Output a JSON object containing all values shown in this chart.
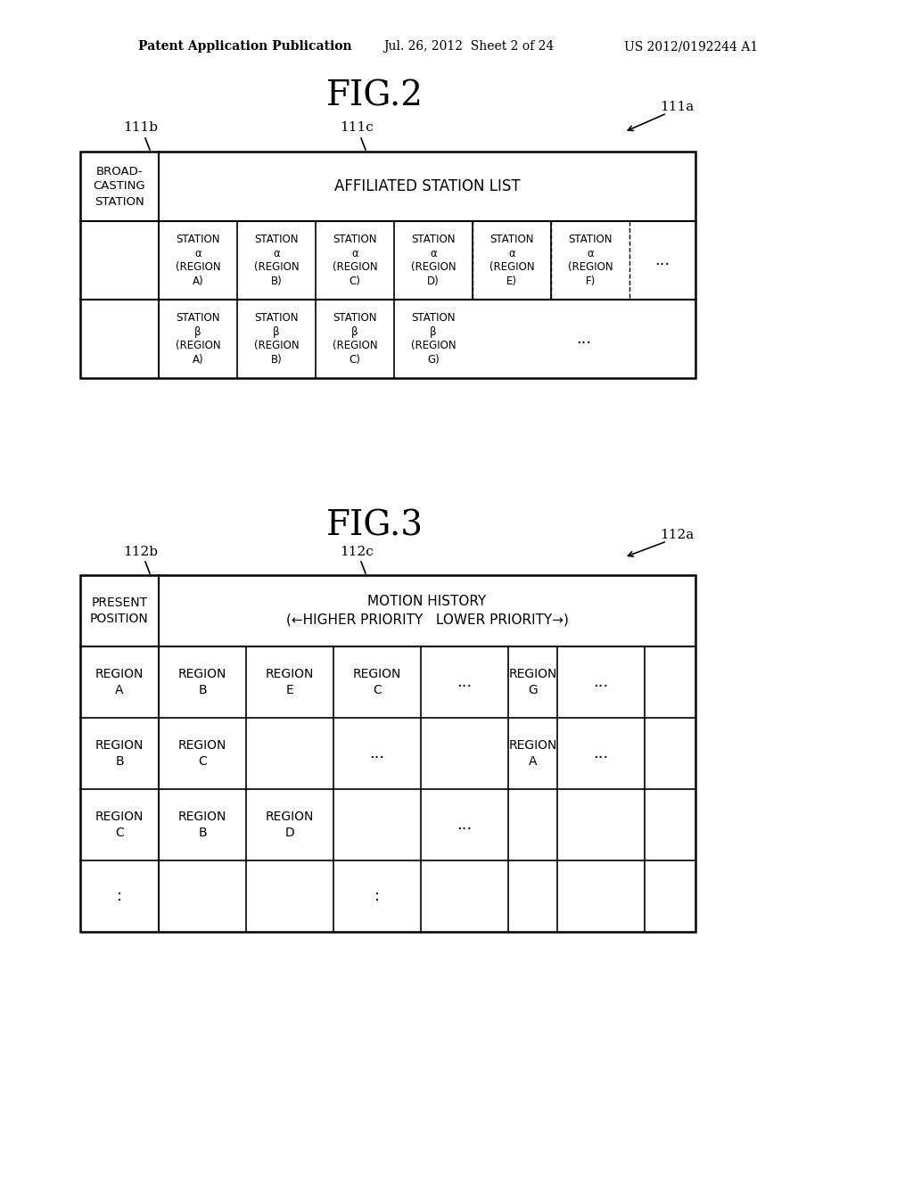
{
  "bg_color": "#ffffff",
  "header_text1": "Patent Application Publication",
  "header_text2": "Jul. 26, 2012  Sheet 2 of 24",
  "header_text3": "US 2012/0192244 A1",
  "fig2_title": "FIG.2",
  "fig2_label_a": "111a",
  "fig2_label_b": "111b",
  "fig2_label_c": "111c",
  "fig3_title": "FIG.3",
  "fig3_label_a": "112a",
  "fig3_label_b": "112b",
  "fig3_label_c": "112c"
}
